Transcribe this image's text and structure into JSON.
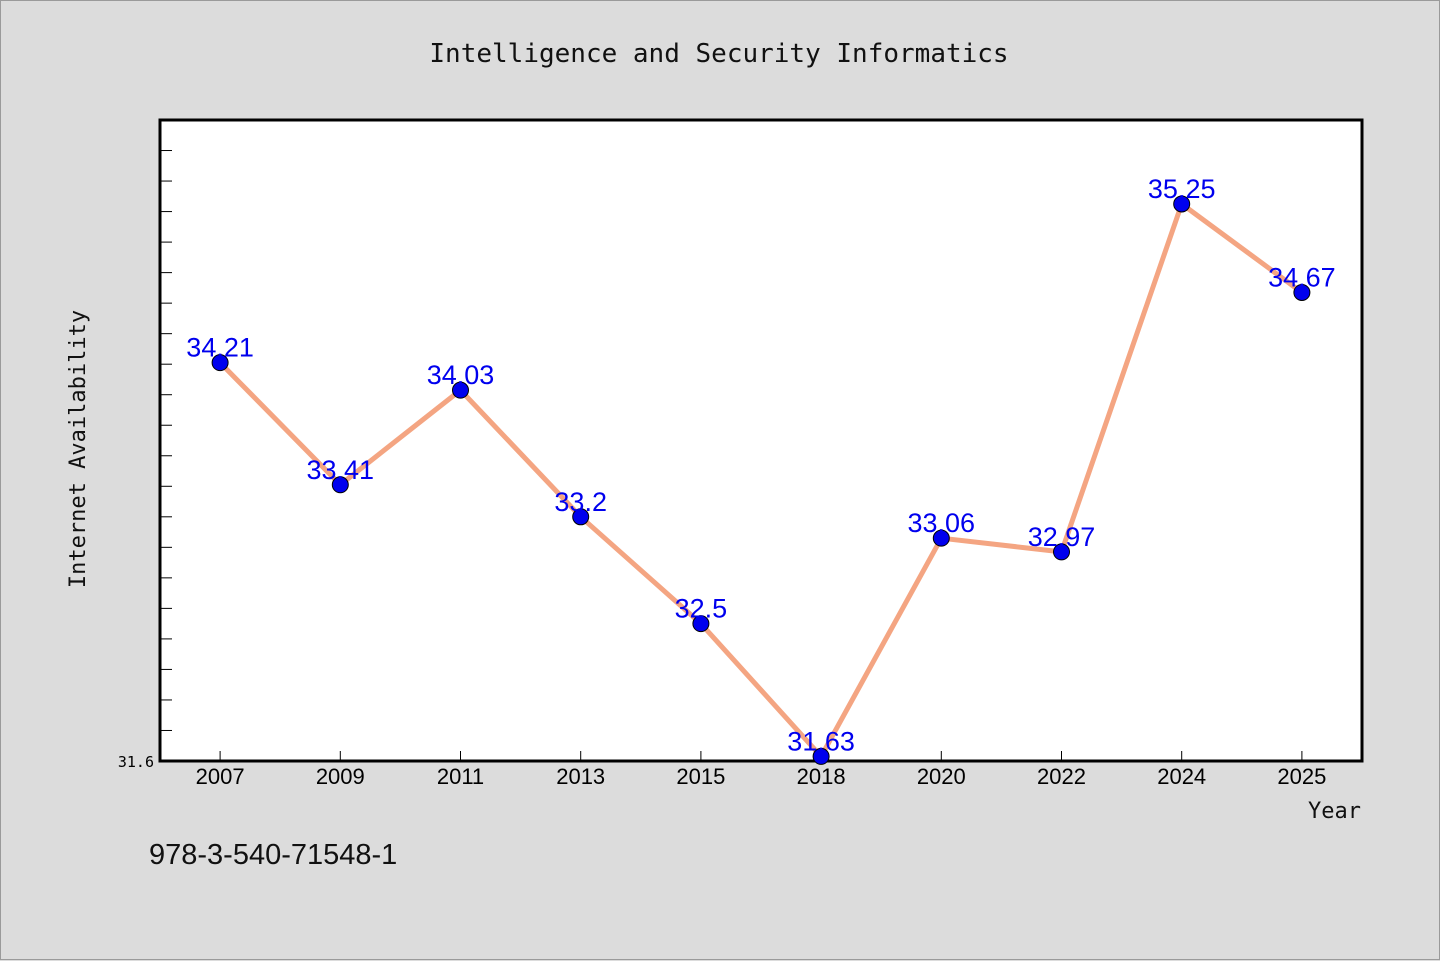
{
  "chart_data": {
    "type": "line",
    "title": "Intelligence and Security Informatics",
    "xlabel": "Year",
    "ylabel": "Internet Availability",
    "categories": [
      "2007",
      "2009",
      "2011",
      "2013",
      "2015",
      "2018",
      "2020",
      "2022",
      "2024",
      "2025"
    ],
    "series": [
      {
        "values": [
          34.21,
          33.41,
          34.03,
          33.2,
          32.5,
          31.63,
          33.06,
          32.97,
          35.25,
          34.67
        ]
      }
    ],
    "data_labels": [
      "34.21",
      "33.41",
      "34.03",
      "33.2",
      "32.5",
      "31.63",
      "33.06",
      "32.97",
      "35.25",
      "34.67"
    ],
    "ylim": [
      31.6,
      35.8
    ],
    "y_tick_labels": [
      "31.6"
    ],
    "grid": false,
    "legend": "none",
    "colors": {
      "line": "#f4a582",
      "marker": "#0000ee",
      "label": "#0000ee",
      "background": "#dcdcdc",
      "plot_background": "#ffffff"
    }
  },
  "footnote": "978-3-540-71548-1"
}
